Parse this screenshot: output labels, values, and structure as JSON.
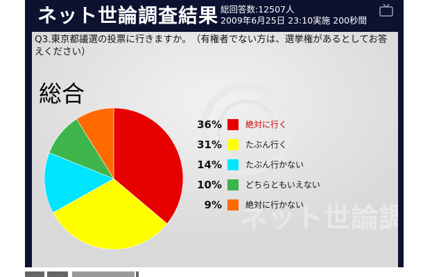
{
  "header": {
    "title": "ネット世論調査結果",
    "meta_line1": "総回答数:12507人",
    "meta_line2": "2009年6月25日 23:10実施 200秒間"
  },
  "question": "Q3.東京都議選の投票に行きますか。　（有権者でない方は、選挙権があるとしてお答えください）",
  "section_title": "総合",
  "watermark_text": "ネット世論調査",
  "chart_data": {
    "type": "pie",
    "title": "総合",
    "categories": [
      "絶対に行く",
      "たぶん行く",
      "たぶん行かない",
      "どちらともいえない",
      "絶対に行かない"
    ],
    "values": [
      36,
      31,
      14,
      10,
      9
    ],
    "unit": "%",
    "colors": [
      "#e60000",
      "#ffff00",
      "#00e5ff",
      "#3db54a",
      "#ff6a00"
    ],
    "label_colors": [
      "#cc0000",
      "#111111",
      "#111111",
      "#111111",
      "#111111"
    ],
    "legend_position": "right"
  },
  "legend": [
    {
      "pct": "36%",
      "label": "絶対に行く"
    },
    {
      "pct": "31%",
      "label": "たぶん行く"
    },
    {
      "pct": "14%",
      "label": "たぶん行かない"
    },
    {
      "pct": "10%",
      "label": "どちらともいえない"
    },
    {
      "pct": "9%",
      "label": "絶対に行かない"
    }
  ],
  "icons": {
    "tv": "tv-icon"
  }
}
